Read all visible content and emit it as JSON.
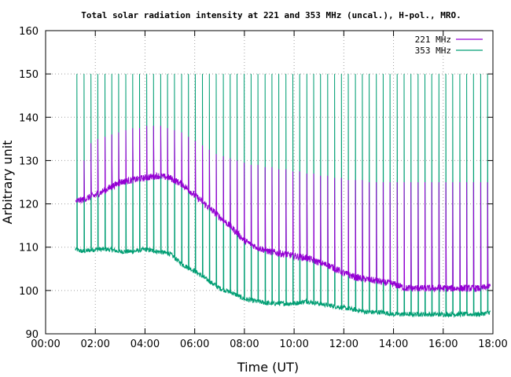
{
  "chart_data": {
    "type": "line",
    "title": "Total solar radiation intensity at 221 and 353 MHz (uncal.), H-pol., MRO.",
    "xlabel": "Time (UT)",
    "ylabel": "Arbitrary unit",
    "xlim": [
      0,
      18
    ],
    "ylim": [
      90,
      160
    ],
    "x_ticks": [
      {
        "value": 0,
        "label": "00:00"
      },
      {
        "value": 2,
        "label": "02:00"
      },
      {
        "value": 4,
        "label": "04:00"
      },
      {
        "value": 6,
        "label": "06:00"
      },
      {
        "value": 8,
        "label": "08:00"
      },
      {
        "value": 10,
        "label": "10:00"
      },
      {
        "value": 12,
        "label": "12:00"
      },
      {
        "value": 14,
        "label": "14:00"
      },
      {
        "value": 16,
        "label": "16:00"
      },
      {
        "value": 18,
        "label": "18:00"
      }
    ],
    "y_ticks": [
      {
        "value": 90,
        "label": "90"
      },
      {
        "value": 100,
        "label": "100"
      },
      {
        "value": 110,
        "label": "110"
      },
      {
        "value": 120,
        "label": "120"
      },
      {
        "value": 130,
        "label": "130"
      },
      {
        "value": 140,
        "label": "140"
      },
      {
        "value": 150,
        "label": "150"
      },
      {
        "value": 160,
        "label": "160"
      }
    ],
    "grid": true,
    "legend_position": "top-right",
    "series": [
      {
        "name": "221 MHz",
        "color": "#9400d3",
        "x": [
          1.2,
          1.5,
          2.0,
          2.5,
          3.0,
          3.5,
          4.0,
          4.5,
          5.0,
          5.5,
          6.0,
          6.5,
          7.0,
          7.5,
          8.0,
          8.5,
          9.0,
          9.5,
          10.0,
          10.5,
          11.0,
          11.5,
          12.0,
          12.5,
          13.0,
          13.5,
          14.0,
          14.5,
          15.0,
          15.5,
          16.0,
          16.5,
          17.0,
          17.5,
          17.9
        ],
        "y": [
          120.5,
          121.0,
          122.0,
          123.5,
          125.0,
          125.5,
          126.0,
          126.5,
          126.0,
          124.5,
          122.0,
          119.5,
          117.0,
          114.5,
          111.5,
          110.0,
          109.0,
          108.5,
          108.0,
          107.5,
          106.5,
          105.5,
          104.0,
          103.0,
          102.5,
          102.0,
          101.5,
          100.5,
          100.5,
          100.5,
          100.5,
          100.5,
          100.5,
          100.5,
          101.0
        ],
        "spike_peaks": [
          121,
          130,
          134,
          135,
          135.5,
          136,
          136.5,
          137,
          137.5,
          137.5,
          138,
          138,
          138,
          137.5,
          137,
          136.5,
          135.5,
          134.5,
          133.5,
          132.5,
          131.5,
          131,
          130.5,
          130,
          129.5,
          129,
          129,
          128.5,
          128.5,
          128,
          128,
          127.5,
          127.5,
          127,
          127,
          126.5,
          126.5,
          126,
          126,
          125.5,
          125.5,
          125.5,
          125,
          125,
          125,
          125,
          125,
          125,
          125,
          125,
          125,
          125,
          125,
          125,
          125,
          125,
          125,
          125,
          125,
          125,
          125
        ]
      },
      {
        "name": "353 MHz",
        "color": "#009e73",
        "x": [
          1.2,
          1.5,
          2.0,
          2.5,
          3.0,
          3.5,
          4.0,
          4.5,
          5.0,
          5.5,
          6.0,
          6.5,
          7.0,
          7.5,
          8.0,
          8.5,
          9.0,
          9.5,
          10.0,
          10.5,
          11.0,
          11.5,
          12.0,
          12.5,
          13.0,
          13.5,
          14.0,
          14.5,
          15.0,
          15.5,
          16.0,
          16.5,
          17.0,
          17.5,
          17.9
        ],
        "y": [
          109.5,
          109.0,
          109.5,
          109.5,
          109.0,
          109.0,
          109.5,
          109.0,
          108.5,
          106.0,
          104.5,
          102.5,
          100.5,
          99.5,
          98.0,
          97.5,
          97.0,
          97.0,
          97.0,
          97.5,
          97.0,
          96.5,
          96.0,
          95.5,
          95.0,
          95.0,
          94.5,
          94.5,
          94.5,
          94.5,
          94.5,
          94.5,
          94.5,
          94.5,
          95.0
        ],
        "spike_peaks": [
          150
        ]
      }
    ]
  }
}
